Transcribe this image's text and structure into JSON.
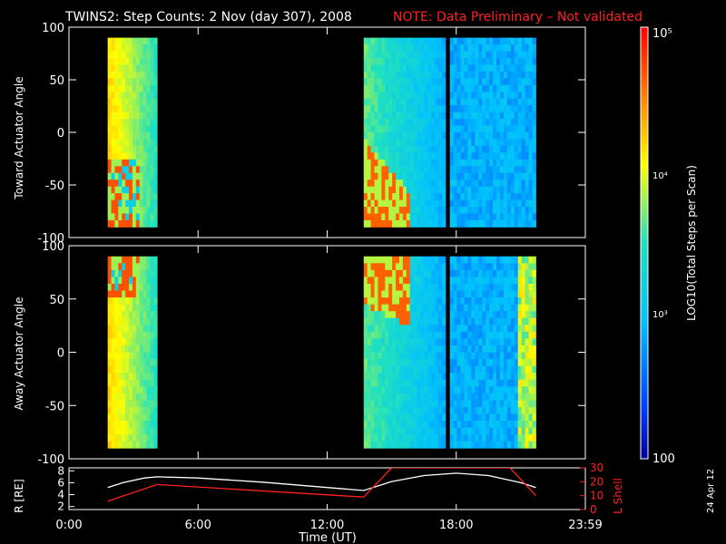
{
  "header": {
    "title": "TWINS2: Step Counts:  2 Nov (day 307), 2008",
    "note": "NOTE: Data Preliminary – Not validated"
  },
  "side_date": "24 Apr 12",
  "colorbar": {
    "label": "LOG10(Total Steps per Scan)",
    "ticks": [
      "100",
      "10³",
      "10⁴",
      "10⁵"
    ],
    "scale": "log",
    "range": [
      100,
      100000
    ]
  },
  "colors": {
    "background": "#000000",
    "axis": "#ffffff",
    "note": "#ff2020",
    "lshell": "#ff2020",
    "radius": "#ffffff"
  },
  "chart_data": [
    {
      "type": "heatmap",
      "ylabel": "Toward Actuator Angle",
      "ylim": [
        -100,
        100
      ],
      "yticks": [
        "100",
        "50",
        "0",
        "-50",
        "-100"
      ],
      "xlim": [
        0,
        24
      ],
      "blocks": [
        {
          "t_start": 1.8,
          "t_end": 4.1,
          "angle_range": [
            -90,
            90
          ],
          "profile": "high"
        },
        {
          "t_start": 13.7,
          "t_end": 17.5,
          "angle_range": [
            -90,
            90
          ],
          "profile": "mixed"
        },
        {
          "t_start": 17.7,
          "t_end": 21.7,
          "angle_range": [
            -90,
            90
          ],
          "profile": "low"
        }
      ]
    },
    {
      "type": "heatmap",
      "ylabel": "Away Actuator Angle",
      "ylim": [
        -100,
        100
      ],
      "yticks": [
        "100",
        "50",
        "0",
        "-50",
        "-100"
      ],
      "xlim": [
        0,
        24
      ],
      "blocks": [
        {
          "t_start": 1.8,
          "t_end": 4.1,
          "angle_range": [
            -90,
            90
          ],
          "profile": "high"
        },
        {
          "t_start": 13.7,
          "t_end": 17.5,
          "angle_range": [
            -90,
            90
          ],
          "profile": "mixed"
        },
        {
          "t_start": 17.7,
          "t_end": 21.7,
          "angle_range": [
            -90,
            90
          ],
          "profile": "low"
        }
      ]
    },
    {
      "type": "line",
      "xlabel": "Time (UT)",
      "xticks": [
        "0:00",
        "6:00",
        "12:00",
        "18:00",
        "23:59"
      ],
      "xlim": [
        0,
        24
      ],
      "left_axis": {
        "label": "R [RE]",
        "ticks": [
          "8",
          "6",
          "4",
          "2"
        ],
        "ylim": [
          1.5,
          8.5
        ]
      },
      "right_axis": {
        "label": "L Shell",
        "ticks": [
          "30",
          "20",
          "10",
          "0"
        ],
        "ylim": [
          0,
          30
        ]
      },
      "series": [
        {
          "axis": "left",
          "x": [
            1.8,
            2.5,
            3.5,
            4.1,
            6,
            9,
            12,
            13.7,
            15,
            16.5,
            18,
            19.5,
            21,
            21.7
          ],
          "y": [
            5.2,
            6.0,
            6.8,
            7.0,
            6.8,
            6.1,
            5.2,
            4.7,
            6.2,
            7.2,
            7.6,
            7.2,
            6.0,
            5.2
          ]
        },
        {
          "axis": "right",
          "x": [
            1.8,
            4.1,
            13.7,
            15.0,
            20.5,
            21.7
          ],
          "y": [
            6,
            18,
            9,
            30,
            30,
            10
          ]
        }
      ]
    }
  ]
}
